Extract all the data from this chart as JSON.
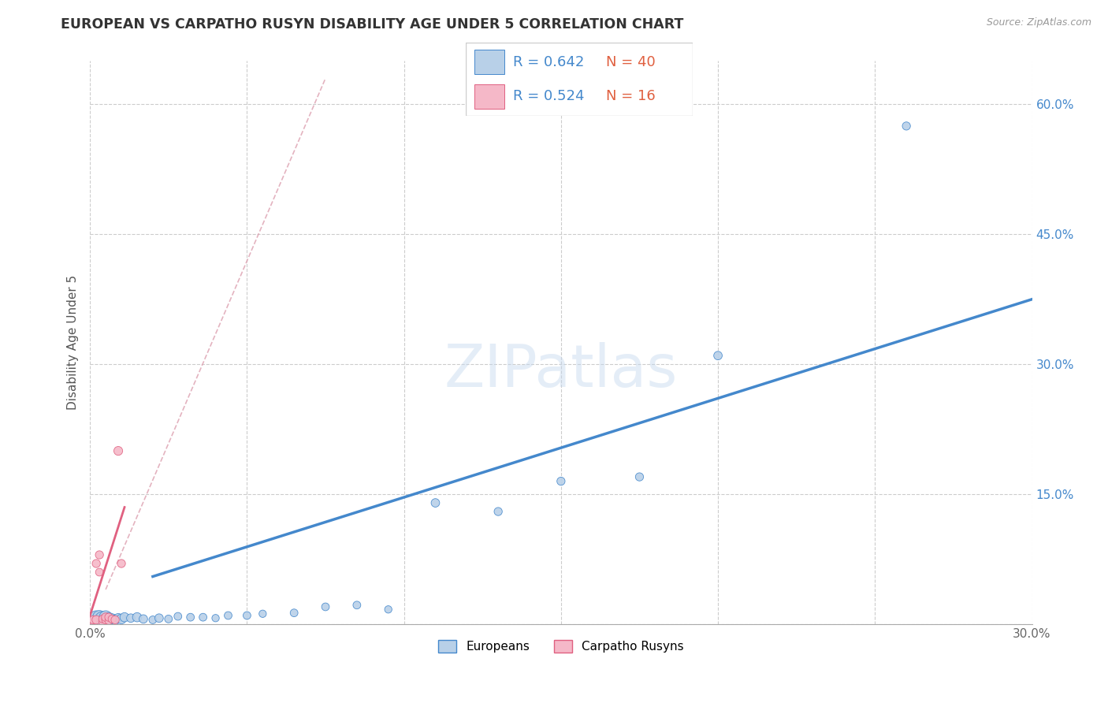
{
  "title": "EUROPEAN VS CARPATHO RUSYN DISABILITY AGE UNDER 5 CORRELATION CHART",
  "source": "Source: ZipAtlas.com",
  "ylabel": "Disability Age Under 5",
  "xlim": [
    0.0,
    0.3
  ],
  "ylim": [
    0.0,
    0.65
  ],
  "xticks": [
    0.0,
    0.05,
    0.1,
    0.15,
    0.2,
    0.25,
    0.3
  ],
  "yticks_right": [
    0.0,
    0.15,
    0.3,
    0.45,
    0.6
  ],
  "ytick_labels_right": [
    "",
    "15.0%",
    "30.0%",
    "45.0%",
    "60.0%"
  ],
  "legend_blue_r": "0.642",
  "legend_blue_n": "40",
  "legend_pink_r": "0.524",
  "legend_pink_n": "16",
  "watermark": "ZIPatlas",
  "blue_color": "#b8d0e8",
  "pink_color": "#f5b8c8",
  "blue_line_color": "#4488cc",
  "pink_line_color": "#e06080",
  "legend_text_color": "#4488cc",
  "n_color": "#e06040",
  "title_color": "#333333",
  "europeans_x": [
    0.001,
    0.001,
    0.002,
    0.002,
    0.003,
    0.003,
    0.004,
    0.004,
    0.005,
    0.005,
    0.006,
    0.006,
    0.007,
    0.008,
    0.009,
    0.01,
    0.011,
    0.013,
    0.015,
    0.017,
    0.02,
    0.022,
    0.025,
    0.028,
    0.032,
    0.036,
    0.04,
    0.044,
    0.05,
    0.055,
    0.065,
    0.075,
    0.085,
    0.095,
    0.11,
    0.13,
    0.15,
    0.175,
    0.2,
    0.26
  ],
  "europeans_y": [
    0.003,
    0.006,
    0.004,
    0.007,
    0.005,
    0.008,
    0.003,
    0.006,
    0.005,
    0.008,
    0.004,
    0.007,
    0.006,
    0.005,
    0.007,
    0.006,
    0.008,
    0.007,
    0.008,
    0.006,
    0.005,
    0.007,
    0.006,
    0.009,
    0.008,
    0.008,
    0.007,
    0.01,
    0.01,
    0.012,
    0.013,
    0.02,
    0.022,
    0.017,
    0.14,
    0.13,
    0.165,
    0.17,
    0.31,
    0.575
  ],
  "europeans_size": [
    200,
    160,
    140,
    180,
    120,
    150,
    200,
    180,
    160,
    140,
    120,
    100,
    90,
    80,
    70,
    80,
    70,
    60,
    70,
    60,
    50,
    60,
    50,
    50,
    50,
    50,
    45,
    50,
    50,
    45,
    50,
    50,
    50,
    45,
    60,
    55,
    55,
    55,
    60,
    55
  ],
  "rusyns_x": [
    0.001,
    0.001,
    0.002,
    0.002,
    0.003,
    0.003,
    0.004,
    0.004,
    0.005,
    0.005,
    0.006,
    0.006,
    0.007,
    0.008,
    0.009,
    0.01
  ],
  "rusyns_y": [
    0.003,
    0.005,
    0.005,
    0.07,
    0.06,
    0.08,
    0.003,
    0.006,
    0.005,
    0.008,
    0.004,
    0.008,
    0.006,
    0.005,
    0.2,
    0.07
  ],
  "rusyns_size": [
    50,
    55,
    60,
    55,
    50,
    55,
    50,
    50,
    55,
    60,
    50,
    55,
    50,
    55,
    65,
    55
  ],
  "blue_line_x": [
    0.02,
    0.3
  ],
  "blue_line_y": [
    0.055,
    0.375
  ],
  "pink_line_x": [
    0.0,
    0.011
  ],
  "pink_line_y": [
    0.01,
    0.135
  ],
  "diagonal_line_x": [
    0.005,
    0.075
  ],
  "diagonal_line_y": [
    0.04,
    0.63
  ]
}
